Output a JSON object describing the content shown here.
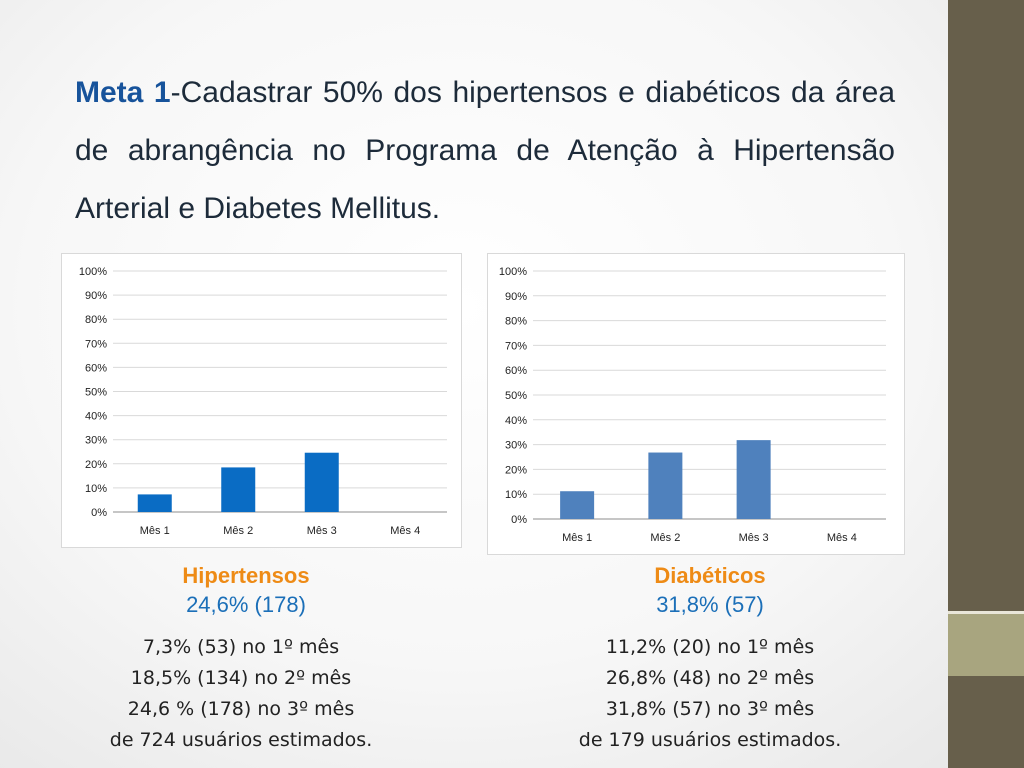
{
  "heading": {
    "bold": "Meta 1",
    "text": "-Cadastrar 50% dos hipertensos e diabéticos da área de abrangência no Programa de Atenção à Hipertensão Arterial e Diabetes Mellitus."
  },
  "colors": {
    "sidebar": "#675f4b",
    "sidebar_accent": "#a8a57f",
    "bar_hipertensos": "#0a6cc4",
    "bar_diabeticos": "#4f81bd",
    "caption_title": "#ee8b16",
    "caption_value": "#1b6fb8"
  },
  "chart_data": [
    {
      "type": "bar",
      "categories": [
        "Mês 1",
        "Mês 2",
        "Mês 3",
        "Mês 4"
      ],
      "values": [
        7.3,
        18.5,
        24.6,
        0
      ],
      "yticks": [
        "0%",
        "10%",
        "20%",
        "30%",
        "40%",
        "50%",
        "60%",
        "70%",
        "80%",
        "90%",
        "100%"
      ],
      "ylim": [
        0,
        100
      ],
      "grid": true,
      "legend": "none",
      "color": "#0a6cc4"
    },
    {
      "type": "bar",
      "categories": [
        "Mês 1",
        "Mês 2",
        "Mês 3",
        "Mês 4"
      ],
      "values": [
        11.2,
        26.8,
        31.8,
        0
      ],
      "yticks": [
        "0%",
        "10%",
        "20%",
        "30%",
        "40%",
        "50%",
        "60%",
        "70%",
        "80%",
        "90%",
        "100%"
      ],
      "ylim": [
        0,
        100
      ],
      "grid": true,
      "legend": "none",
      "color": "#4f81bd"
    }
  ],
  "hipertensos": {
    "title": "Hipertensos",
    "value": "24,6% (178)",
    "lines": [
      "7,3% (53) no 1º mês",
      "18,5% (134) no 2º mês",
      "24,6 % (178) no 3º mês",
      "de 724 usuários estimados."
    ]
  },
  "diabeticos": {
    "title": "Diabéticos",
    "value": "31,8% (57)",
    "lines": [
      "11,2% (20) no 1º mês",
      "26,8% (48) no 2º mês",
      "31,8% (57) no 3º mês",
      "de 179 usuários estimados."
    ]
  }
}
